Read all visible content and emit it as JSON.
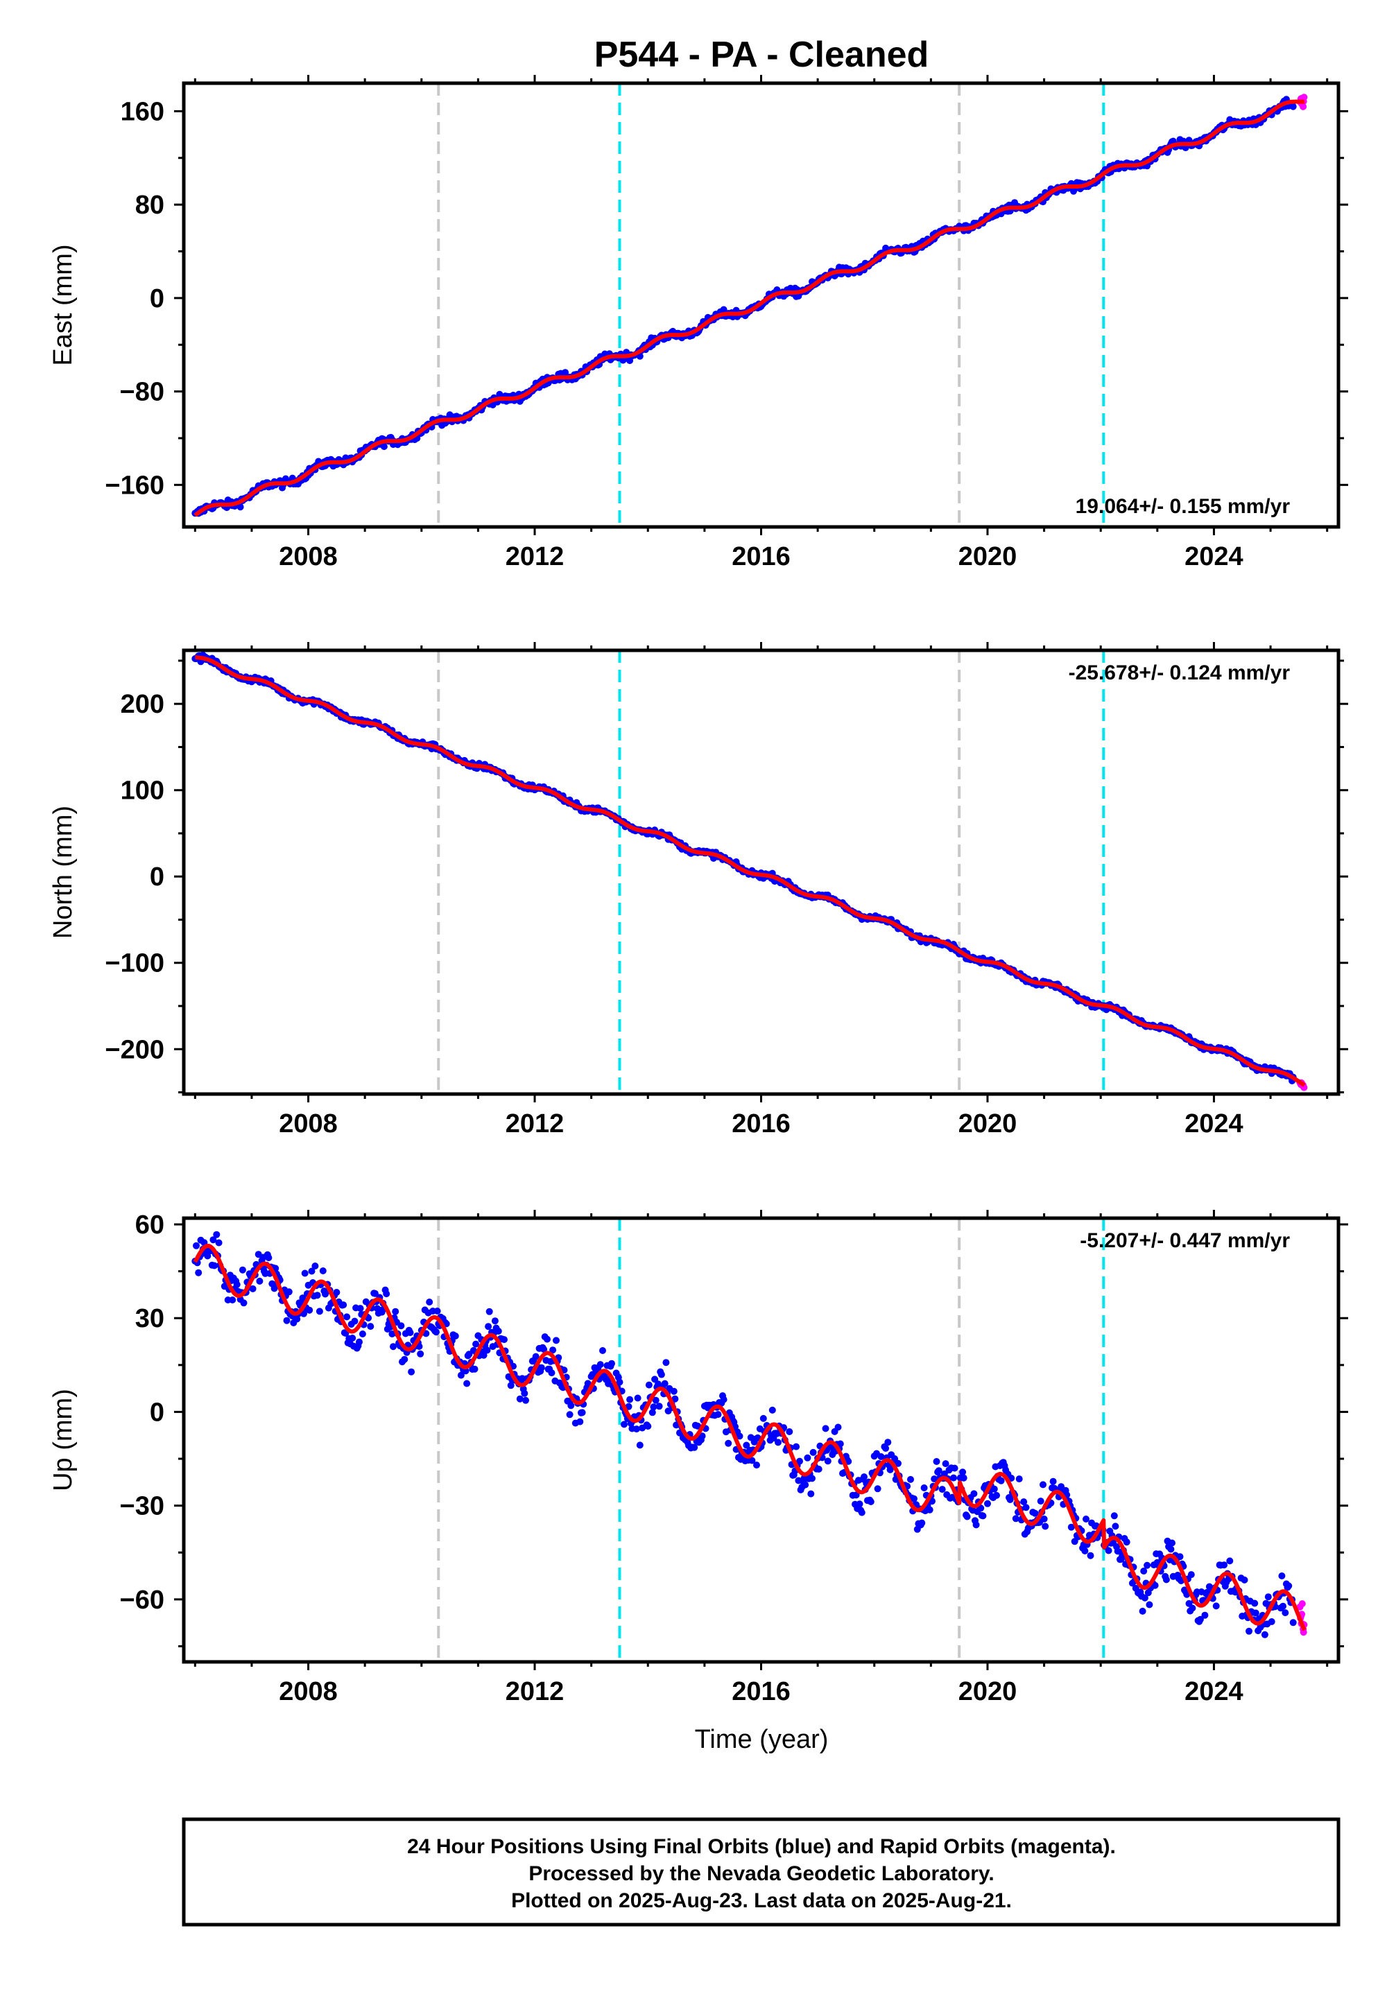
{
  "figure": {
    "title": "P544  - PA - Cleaned",
    "xlabel": "Time (year)"
  },
  "footer": {
    "lines": [
      "24 Hour Positions Using Final Orbits (blue) and Rapid Orbits (magenta).",
      "Processed by the Nevada Geodetic Laboratory.",
      "Plotted on 2025-Aug-23. Last data on 2025-Aug-21."
    ]
  },
  "colors": {
    "final_orbits": "#0000ff",
    "rapid_orbits": "#ff00ff",
    "model_fit": "#ff0000",
    "equipment_change_line": "#c8c8c8",
    "earthquake_line": "#00e5f0"
  },
  "chart_data": [
    {
      "type": "scatter",
      "component": "East",
      "ylabel": "East (mm)",
      "xlim": [
        2005.8,
        2026.2
      ],
      "ylim": [
        -196,
        184
      ],
      "xticks": [
        2008,
        2012,
        2016,
        2020,
        2024
      ],
      "yticks": [
        -160,
        -80,
        0,
        80,
        160
      ],
      "rate_label": "19.064+/- 0.155 mm/yr",
      "rate_position": "bottom-right",
      "start": {
        "year": 2006.0,
        "value": -186
      },
      "end": {
        "year": 2025.6,
        "value": 170
      },
      "seasonal_amplitude": 3,
      "scatter_noise": 2.5,
      "offsets": [],
      "vlines": [
        {
          "x": 2010.3,
          "color": "gray"
        },
        {
          "x": 2013.5,
          "color": "cyan"
        },
        {
          "x": 2019.5,
          "color": "gray"
        },
        {
          "x": 2022.05,
          "color": "cyan"
        }
      ],
      "series": [
        {
          "name": "Final Orbits",
          "color": "blue",
          "x_range": [
            2006.0,
            2025.4
          ]
        },
        {
          "name": "Rapid Orbits",
          "color": "magenta",
          "x_range": [
            2025.4,
            2025.6
          ]
        },
        {
          "name": "Model",
          "color": "red"
        }
      ]
    },
    {
      "type": "scatter",
      "component": "North",
      "ylabel": "North (mm)",
      "xlim": [
        2005.8,
        2026.2
      ],
      "ylim": [
        -252,
        262
      ],
      "xticks": [
        2008,
        2012,
        2016,
        2020,
        2024
      ],
      "yticks": [
        -200,
        -100,
        0,
        100,
        200
      ],
      "rate_label": "-25.678+/- 0.124 mm/yr",
      "rate_position": "top-right",
      "start": {
        "year": 2006.0,
        "value": 254
      },
      "end": {
        "year": 2025.6,
        "value": -240
      },
      "seasonal_amplitude": 3,
      "scatter_noise": 2.5,
      "offsets": [],
      "vlines": [
        {
          "x": 2010.3,
          "color": "gray"
        },
        {
          "x": 2013.5,
          "color": "cyan"
        },
        {
          "x": 2019.5,
          "color": "gray"
        },
        {
          "x": 2022.05,
          "color": "cyan"
        }
      ],
      "series": [
        {
          "name": "Final Orbits",
          "color": "blue",
          "x_range": [
            2006.0,
            2025.4
          ]
        },
        {
          "name": "Rapid Orbits",
          "color": "magenta",
          "x_range": [
            2025.4,
            2025.6
          ]
        },
        {
          "name": "Model",
          "color": "red"
        }
      ]
    },
    {
      "type": "scatter",
      "component": "Up",
      "ylabel": "Up (mm)",
      "xlim": [
        2005.8,
        2026.2
      ],
      "ylim": [
        -80,
        62
      ],
      "xticks": [
        2008,
        2012,
        2016,
        2020,
        2024
      ],
      "yticks": [
        -60,
        -30,
        0,
        30,
        60
      ],
      "rate_label": "-5.207+/- 0.447 mm/yr",
      "rate_position": "top-right",
      "start": {
        "year": 2006.0,
        "value": 48
      },
      "end": {
        "year": 2025.6,
        "value": -66
      },
      "seasonal_amplitude": 6.5,
      "scatter_noise": 5,
      "offsets": [
        {
          "x": 2019.5,
          "value": 7
        },
        {
          "x": 2022.05,
          "value": -9
        }
      ],
      "vlines": [
        {
          "x": 2010.3,
          "color": "gray"
        },
        {
          "x": 2013.5,
          "color": "cyan"
        },
        {
          "x": 2019.5,
          "color": "gray"
        },
        {
          "x": 2022.05,
          "color": "cyan"
        }
      ],
      "series": [
        {
          "name": "Final Orbits",
          "color": "blue",
          "x_range": [
            2006.0,
            2025.4
          ]
        },
        {
          "name": "Rapid Orbits",
          "color": "magenta",
          "x_range": [
            2025.4,
            2025.6
          ]
        },
        {
          "name": "Model",
          "color": "red"
        }
      ]
    }
  ]
}
